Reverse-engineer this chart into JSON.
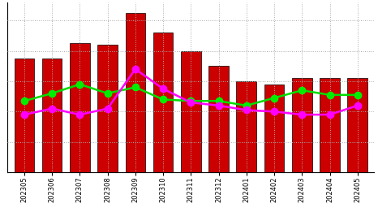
{
  "categories": [
    "202305",
    "202306",
    "202307",
    "202308",
    "202309",
    "202310",
    "202311",
    "202312",
    "202401",
    "202402",
    "202403",
    "202404",
    "202405"
  ],
  "bar_values": [
    75,
    75,
    85,
    84,
    105,
    92,
    80,
    70,
    60,
    58,
    62,
    62,
    62
  ],
  "line1_values": [
    47,
    52,
    58,
    52,
    56,
    48,
    47,
    47,
    44,
    49,
    54,
    51,
    51
  ],
  "line2_values": [
    38,
    42,
    38,
    42,
    68,
    55,
    46,
    44,
    41,
    40,
    38,
    38,
    44
  ],
  "bar_color": "#cc0000",
  "bar_edge_color": "#000000",
  "line1_color": "#00dd00",
  "line2_color": "#ff00ff",
  "marker1_color": "#00ee00",
  "marker2_color": "#ff00ff",
  "grid_color": "#aaaaaa",
  "background_color": "#ffffff",
  "ylim_min": 0,
  "ylim_max": 112,
  "marker_size": 6,
  "line_width": 1.8
}
